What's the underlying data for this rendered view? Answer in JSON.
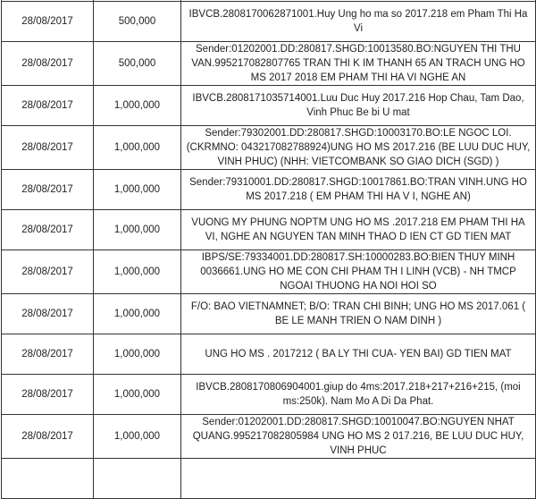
{
  "rows": [
    {
      "date": "",
      "amount": "",
      "description": ""
    },
    {
      "date": "28/08/2017",
      "amount": "500,000",
      "description": "IBVCB.2808170062871001.Huy Ung ho ma so 2017.218 em Pham Thi Ha Vi"
    },
    {
      "date": "28/08/2017",
      "amount": "500,000",
      "description": "Sender:01202001.DD:280817.SHGD:10013580.BO:NGUYEN THI THU VAN.995217082807765 TRAN THI K IM THANH 65 AN TRACH UNG HO MS 2017 2018 EM PHAM THI HA VI NGHE AN"
    },
    {
      "date": "28/08/2017",
      "amount": "1,000,000",
      "description": "IBVCB.2808171035714001.Luu Duc Huy 2017.216 Hop Chau, Tam Dao, Vinh Phuc Be bi U mat"
    },
    {
      "date": "28/08/2017",
      "amount": "1,000,000",
      "description": "Sender:79302001.DD:280817.SHGD:10003170.BO:LE NGOC LOI.(CKRMNO: 043217082788924)UNG HO MS 2017.216 (BE LUU DUC HUY, VINH PHUC) (NHH: VIETCOMBANK SO GIAO DICH (SGD) )"
    },
    {
      "date": "28/08/2017",
      "amount": "1,000,000",
      "description": "Sender:79310001.DD:280817.SHGD:10017861.BO:TRAN VINH.UNG HO MS 2017.218 ( EM PHAM THI HA V I, NGHE AN)"
    },
    {
      "date": "28/08/2017",
      "amount": "1,000,000",
      "description": "VUONG MY PHUNG NOPTM UNG HO MS .2017.218 EM PHAM THI HA VI, NGHE AN NGUYEN TAN MINH THAO D IEN CT GD TIEN MAT"
    },
    {
      "date": "28/08/2017",
      "amount": "1,000,000",
      "description": "IBPS/SE:79334001.DD:280817.SH:10000283.BO:BIEN THUY MINH 0036661.UNG HO ME CON CHI PHAM TH I LINH (VCB) - NH TMCP NGOAI THUONG HA NOI HOI SO"
    },
    {
      "date": "28/08/2017",
      "amount": "1,000,000",
      "description": "F/O: BAO VIETNAMNET; B/O: TRAN CHI BINH; UNG HO MS 2017.061 ( BE LE MANH TRIEN O NAM DINH )"
    },
    {
      "date": "28/08/2017",
      "amount": "1,000,000",
      "description": "UNG HO MS . 2017212 ( BA LY THI CUA- YEN BAI) GD TIEN MAT"
    },
    {
      "date": "28/08/2017",
      "amount": "1,000,000",
      "description": "IBVCB.2808170806904001.giup do 4ms:2017.218+217+216+215, (moi ms:250k). Nam Mo A Di Da Phat."
    },
    {
      "date": "28/08/2017",
      "amount": "1,000,000",
      "description": "Sender:01202001.DD:280817.SHGD:10010047.BO:NGUYEN NHAT QUANG.995217082805984 UNG HO MS 2 017.216, BE LUU DUC HUY, VINH PHUC"
    },
    {
      "date": "",
      "amount": "",
      "description": ""
    }
  ]
}
